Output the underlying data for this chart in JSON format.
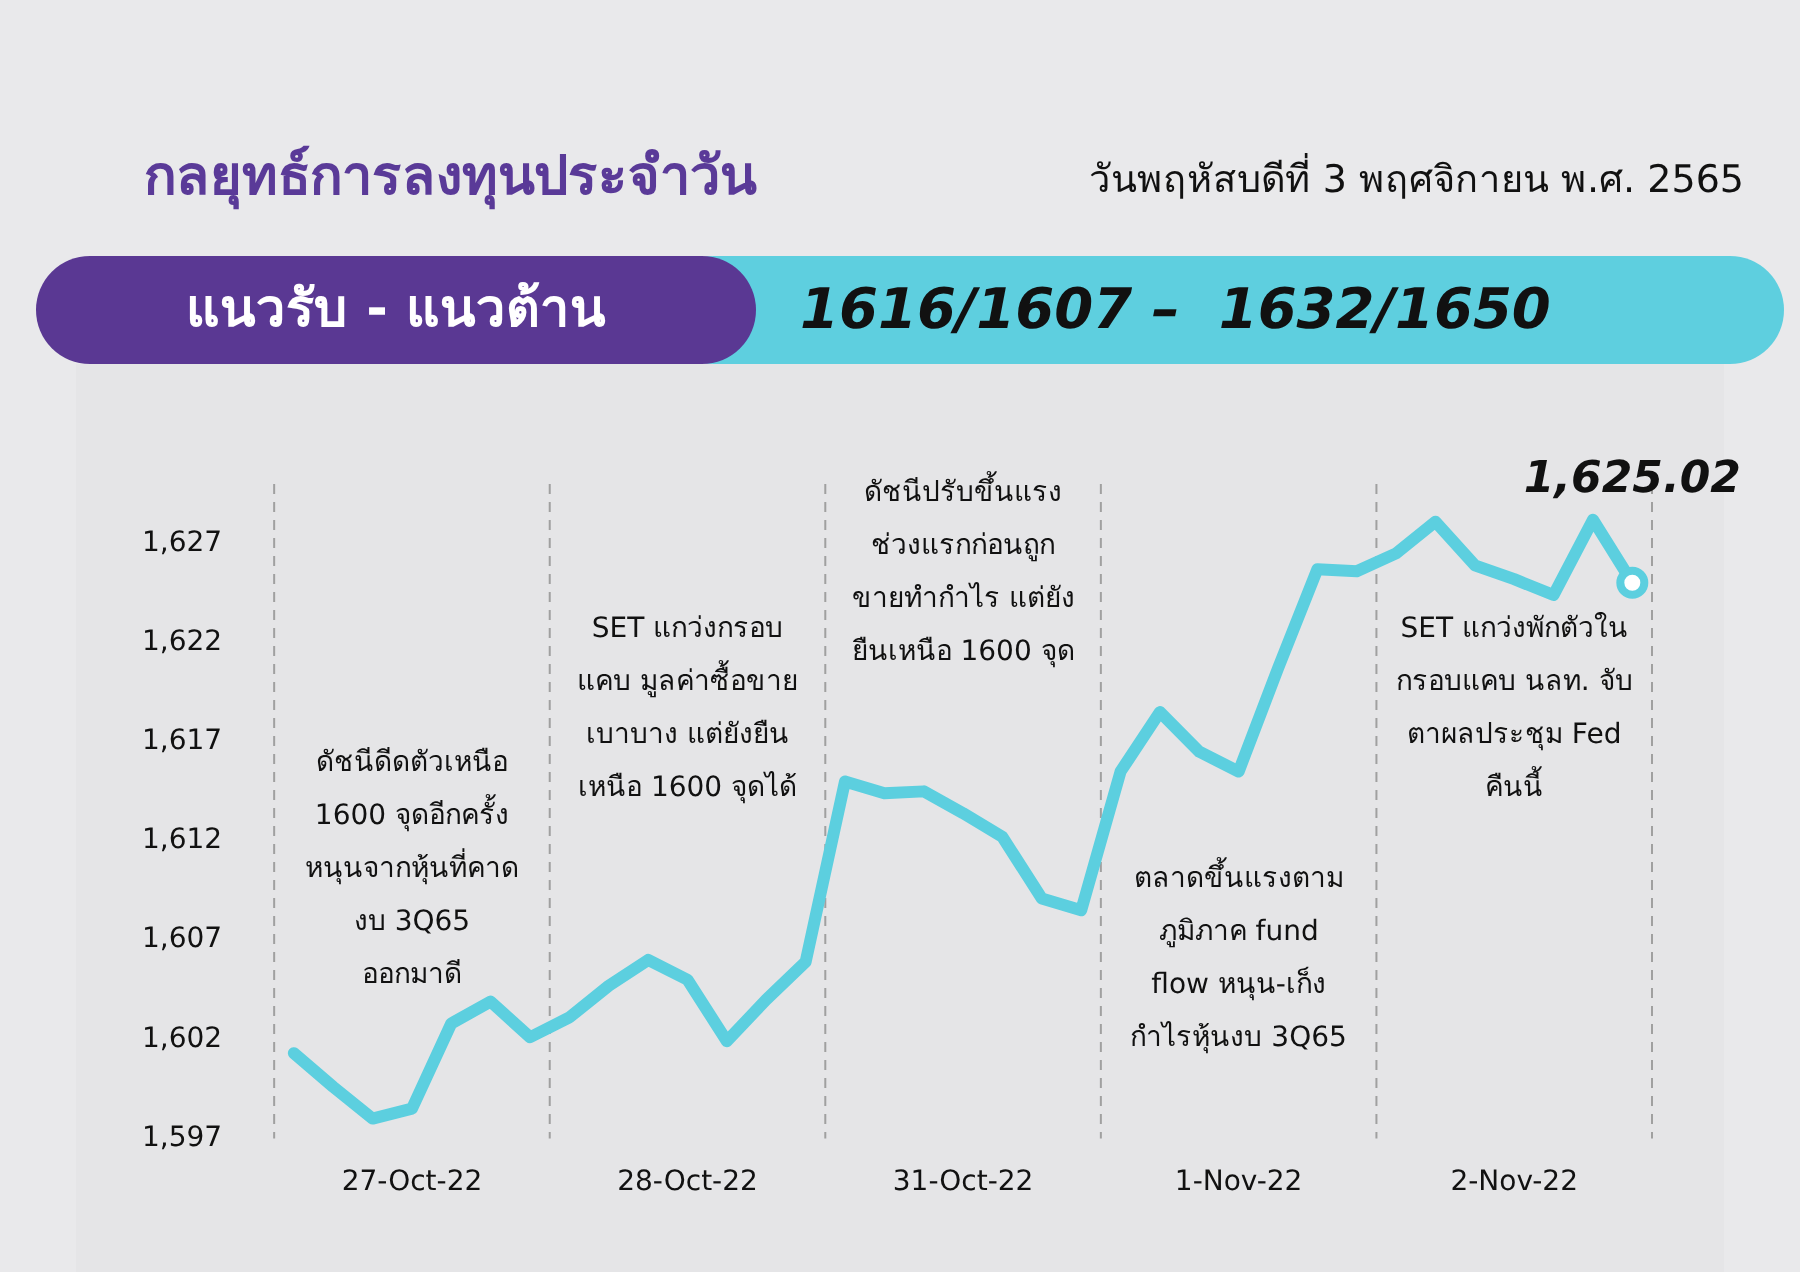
{
  "chart_data": {
    "type": "line",
    "title": "กลยุทธ์การลงทุนประจำวัน",
    "subtitle": "วันพฤหัสบดีที่ 3 พฤศจิกายน พ.ศ. 2565",
    "annotations": [
      "แนวรับ - แนวต้าน",
      "1616/1607 –  1632/1650",
      "ดัชนีดีดตัวเหนือ\n1600 จุดอีกครั้ง\nหนุนจากหุ้นที่คาด\nงบ 3Q65\nออกมาดี",
      "SET แกว่งกรอบ\nแคบ มูลค่าซื้อขาย\nเบาบาง แต่ยังยืน\nเหนือ 1600 จุดได้",
      "ดัชนีปรับขึ้นแรง\nช่วงแรกก่อนถูก\nขายทำกำไร แต่ยัง\nยืนเหนือ 1600 จุด",
      "ตลาดขึ้นแรงตาม\nภูมิภาค fund\nflow หนุน-เก็ง\nกำไรหุ้นงบ 3Q65",
      "SET แกว่งพักตัวใน\nกรอบแคบ นลท. จับ\nตาผลประชุม Fed\nคืนนี้"
    ],
    "categories": [
      null,
      null,
      null,
      "27-Oct-22",
      null,
      null,
      null,
      null,
      null,
      null,
      "28-Oct-22",
      null,
      null,
      null,
      null,
      null,
      null,
      "31-Oct-22",
      null,
      null,
      null,
      null,
      null,
      null,
      "1-Nov-22",
      null,
      null,
      null,
      null,
      null,
      null,
      "2-Nov-22",
      null,
      null,
      null
    ],
    "series": [
      {
        "color": "#5ccfdf",
        "values": [
          1601.3,
          1599.6,
          1598.0,
          1598.5,
          1602.8,
          1603.9,
          1602.1,
          1603.1,
          1604.7,
          1606.0,
          1605.0,
          1601.9,
          1604.0,
          1605.9,
          1615.0,
          1614.4,
          1614.5,
          1613.4,
          1612.2,
          1609.1,
          1608.5,
          1615.5,
          1618.5,
          1616.5,
          1615.5,
          1620.7,
          1625.7,
          1625.6,
          1626.5,
          1628.1,
          1625.9,
          1625.2,
          1624.4,
          1628.2,
          1625.02
        ],
        "value_labels": [
          null,
          null,
          null,
          null,
          null,
          null,
          null,
          null,
          null,
          null,
          null,
          null,
          null,
          null,
          null,
          null,
          null,
          null,
          null,
          null,
          null,
          null,
          null,
          null,
          null,
          null,
          null,
          null,
          null,
          null,
          null,
          null,
          null,
          null,
          "1,625.02"
        ]
      }
    ],
    "ylim": [
      1597,
      1630
    ],
    "yticks": [
      {
        "value": 1597,
        "label": "1,597"
      },
      {
        "value": 1602,
        "label": "1,602"
      },
      {
        "value": 1607,
        "label": "1,607"
      },
      {
        "value": 1612,
        "label": "1,612"
      },
      {
        "value": 1617,
        "label": "1,617"
      },
      {
        "value": 1622,
        "label": "1,622"
      },
      {
        "value": 1627,
        "label": "1,627"
      }
    ],
    "grid": "x",
    "legend": false
  }
}
